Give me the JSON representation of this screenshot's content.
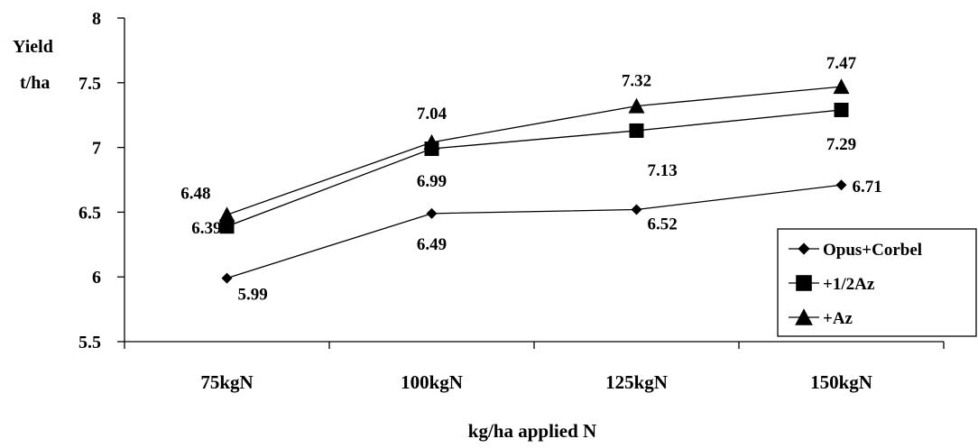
{
  "chart_data": {
    "type": "line",
    "title": "",
    "ylabel": [
      "Yield",
      "t/ha"
    ],
    "xlabel": "kg/ha applied N",
    "categories": [
      "75kgN",
      "100kgN",
      "125kgN",
      "150kgN"
    ],
    "ylim": [
      5.5,
      8
    ],
    "yticks": [
      5.5,
      6,
      6.5,
      7,
      7.5,
      8
    ],
    "ytick_labels": [
      "5.5",
      "6",
      "6.5",
      "7",
      "7.5",
      "8"
    ],
    "grid": false,
    "legend_position": "bottom-right",
    "series": [
      {
        "name": "Opus+Corbel",
        "marker": "diamond",
        "values": [
          5.99,
          6.49,
          6.52,
          6.71
        ],
        "labels": [
          "5.99",
          "6.49",
          "6.52",
          "6.71"
        ]
      },
      {
        "name": "+1/2Az",
        "marker": "square",
        "values": [
          6.39,
          6.99,
          7.13,
          7.29
        ],
        "labels": [
          "6.39",
          "6.99",
          "7.13",
          "7.29"
        ]
      },
      {
        "name": "+Az",
        "marker": "triangle",
        "values": [
          6.48,
          7.04,
          7.32,
          7.47
        ],
        "labels": [
          "6.48",
          "7.04",
          "7.32",
          "7.47"
        ]
      }
    ],
    "line_color": "#000000"
  }
}
